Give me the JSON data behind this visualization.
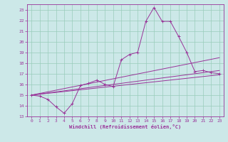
{
  "bg_color": "#cce8e8",
  "line_color": "#993399",
  "xlabel": "Windchill (Refroidissement éolien,°C)",
  "xlim": [
    -0.5,
    23.5
  ],
  "ylim": [
    13,
    23.5
  ],
  "yticks": [
    13,
    14,
    15,
    16,
    17,
    18,
    19,
    20,
    21,
    22,
    23
  ],
  "xticks": [
    0,
    1,
    2,
    3,
    4,
    5,
    6,
    7,
    8,
    9,
    10,
    11,
    12,
    13,
    14,
    15,
    16,
    17,
    18,
    19,
    20,
    21,
    22,
    23
  ],
  "grid_color": "#99ccbb",
  "series1": [
    [
      0,
      15.0
    ],
    [
      1,
      14.9
    ],
    [
      2,
      14.6
    ],
    [
      3,
      13.9
    ],
    [
      4,
      13.3
    ],
    [
      5,
      14.2
    ],
    [
      6,
      15.9
    ],
    [
      7,
      16.1
    ],
    [
      8,
      16.4
    ],
    [
      9,
      16.0
    ],
    [
      10,
      15.8
    ],
    [
      11,
      18.3
    ],
    [
      12,
      18.8
    ],
    [
      13,
      19.0
    ],
    [
      14,
      21.9
    ],
    [
      15,
      23.2
    ],
    [
      16,
      21.9
    ],
    [
      17,
      21.9
    ],
    [
      18,
      20.5
    ],
    [
      19,
      19.0
    ],
    [
      20,
      17.2
    ],
    [
      21,
      17.3
    ],
    [
      22,
      17.1
    ],
    [
      23,
      17.0
    ]
  ],
  "line_upper": [
    [
      0,
      15.0
    ],
    [
      23,
      18.5
    ]
  ],
  "line_mid": [
    [
      0,
      15.0
    ],
    [
      23,
      17.3
    ]
  ],
  "line_lower": [
    [
      0,
      15.0
    ],
    [
      23,
      16.9
    ]
  ]
}
